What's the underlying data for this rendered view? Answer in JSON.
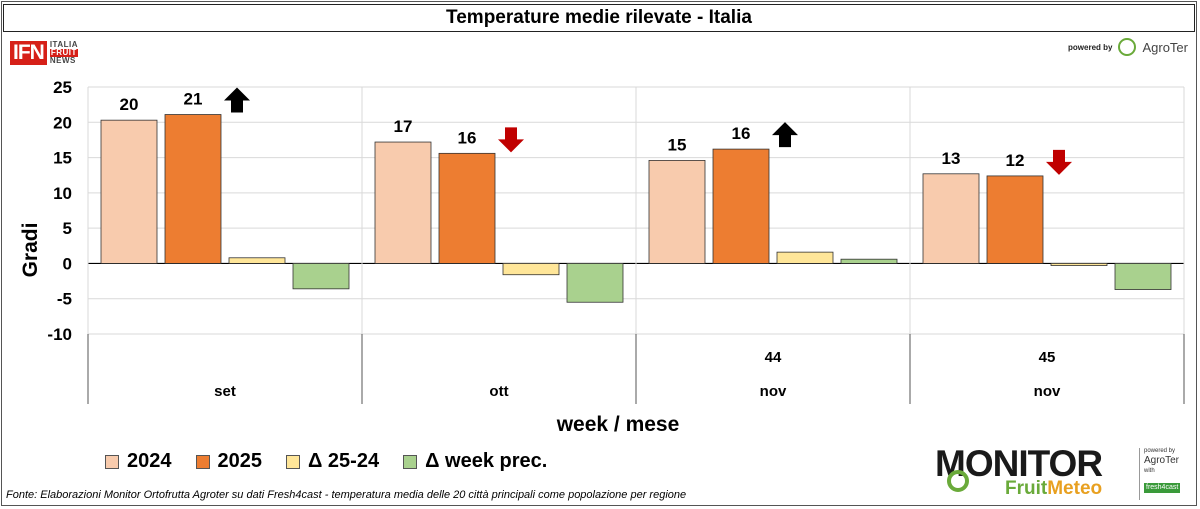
{
  "title": "Temperature medie rilevate - Italia",
  "logos": {
    "ifn_mark": "IFN",
    "ifn_words": [
      "ITALIA",
      "FRUIT",
      "NEWS"
    ],
    "powered_by": "powered by",
    "agroter": "AgroTer",
    "monitor": "MONITOR",
    "fruit": "Fruit",
    "meteo": "Meteo",
    "side_powered_by": "powered by",
    "side_agroter": "AgroTer",
    "side_with": "with",
    "side_fresh4cast": "fresh4cast"
  },
  "colors": {
    "2024": "#f8cbad",
    "2025": "#ed7d31",
    "delta2524": "#ffe699",
    "deltaweek": "#a9d18e",
    "arrow_up": "#000000",
    "arrow_down": "#c00000",
    "fruit": "#6aaa3a",
    "meteo": "#e8a020"
  },
  "source": "Fonte: Elaborazioni Monitor Ortofrutta Agroter su dati Fresh4cast - temperatura media delle 20 città principali come popolazione per regione",
  "chart_data": {
    "type": "bar",
    "title": "Temperature medie rilevate - Italia",
    "xlabel": "week / mese",
    "ylabel": "Gradi",
    "ylim": [
      -10,
      25
    ],
    "yticks": [
      25,
      20,
      15,
      10,
      5,
      0,
      -5,
      -10
    ],
    "grid": true,
    "categories": [
      {
        "week": "",
        "month": "set"
      },
      {
        "week": "",
        "month": "ott"
      },
      {
        "week": "44",
        "month": "nov"
      },
      {
        "week": "45",
        "month": "nov"
      }
    ],
    "series": [
      {
        "name": "2024",
        "values": [
          20.3,
          17.2,
          14.6,
          12.7
        ],
        "labels": [
          "20",
          "17",
          "15",
          "13"
        ]
      },
      {
        "name": "2025",
        "values": [
          21.1,
          15.6,
          16.2,
          12.4
        ],
        "labels": [
          "21",
          "16",
          "16",
          "12"
        ]
      },
      {
        "name": "Δ 25-24",
        "values": [
          0.8,
          -1.6,
          1.6,
          -0.3
        ]
      },
      {
        "name": "Δ week prec.",
        "values": [
          -3.6,
          -5.5,
          0.6,
          -3.7
        ]
      }
    ],
    "trend_arrows": [
      "up",
      "down",
      "up",
      "down"
    ],
    "legend": [
      "2024",
      "2025",
      "Δ 25-24",
      "Δ week prec."
    ]
  }
}
